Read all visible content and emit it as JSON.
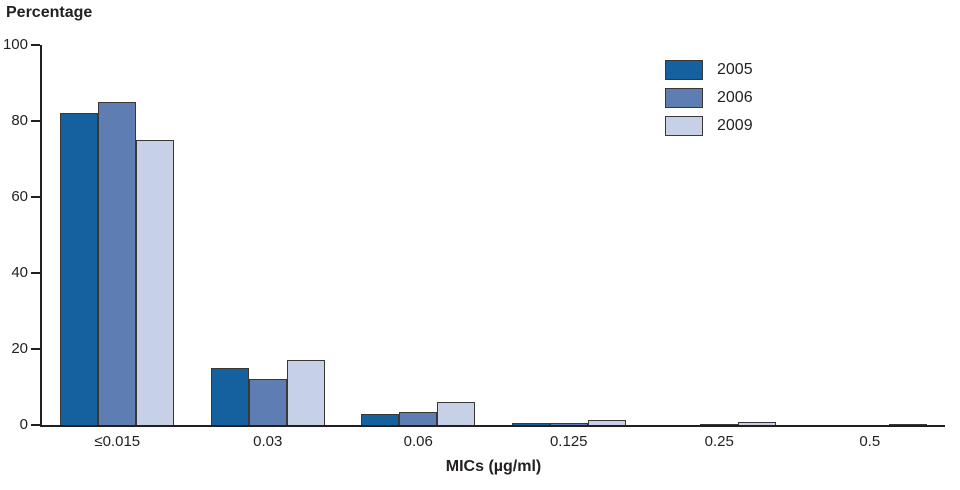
{
  "chart_data": {
    "type": "bar",
    "title": "Percentage",
    "xlabel": "MICs (µg/ml)",
    "ylabel": "Percentage",
    "categories": [
      "≤0.015",
      "0.03",
      "0.06",
      "0.125",
      "0.25",
      "0.5"
    ],
    "series": [
      {
        "name": "2005",
        "color": "#15609f",
        "values": [
          82,
          15,
          3,
          0.4,
          0,
          0
        ]
      },
      {
        "name": "2006",
        "color": "#5d7db3",
        "values": [
          85,
          12,
          3.5,
          0.4,
          0.3,
          0
        ]
      },
      {
        "name": "2009",
        "color": "#c6d0e6",
        "values": [
          75,
          17,
          6,
          1.4,
          0.8,
          0.3
        ]
      }
    ],
    "ylim": [
      0,
      100
    ],
    "yticks": [
      0,
      20,
      40,
      60,
      80,
      100
    ],
    "legend_position": "top-right",
    "grid": false
  }
}
